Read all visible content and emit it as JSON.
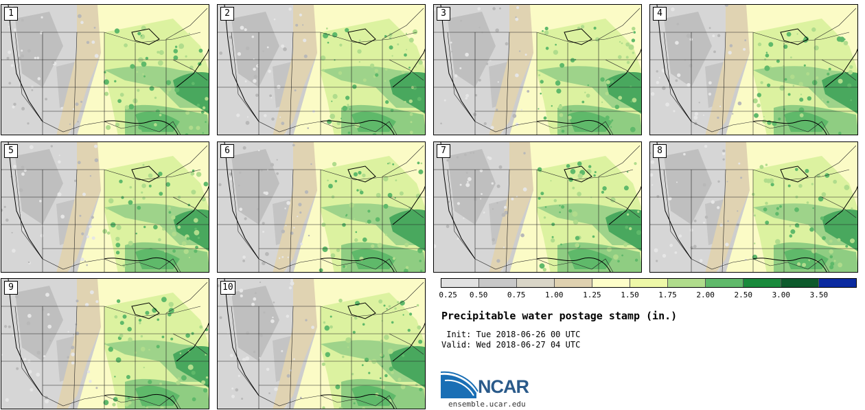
{
  "panels": [
    {
      "label": "1"
    },
    {
      "label": "2"
    },
    {
      "label": "3"
    },
    {
      "label": "4"
    },
    {
      "label": "5"
    },
    {
      "label": "6"
    },
    {
      "label": "7"
    },
    {
      "label": "8"
    },
    {
      "label": "9"
    },
    {
      "label": "10"
    }
  ],
  "colorbar": {
    "ticks": [
      "0.25",
      "0.50",
      "0.75",
      "1.00",
      "1.25",
      "1.50",
      "1.75",
      "2.00",
      "2.50",
      "3.00",
      "3.50"
    ],
    "colors": [
      "#e1e1e1",
      "#c8c8c8",
      "#d9d5c7",
      "#dfd1b0",
      "#fdfdc9",
      "#eef8a8",
      "#b0dc8c",
      "#5fb96a",
      "#198a3c",
      "#0d5a2c",
      "#0a2aa0"
    ]
  },
  "title": "Precipitable water postage stamp (in.)",
  "init": " Init: Tue 2018-06-26 00 UTC",
  "valid": "Valid: Wed 2018-06-27 04 UTC",
  "logo": {
    "text": "NCAR",
    "site": "ensemble.ucar.edu"
  }
}
